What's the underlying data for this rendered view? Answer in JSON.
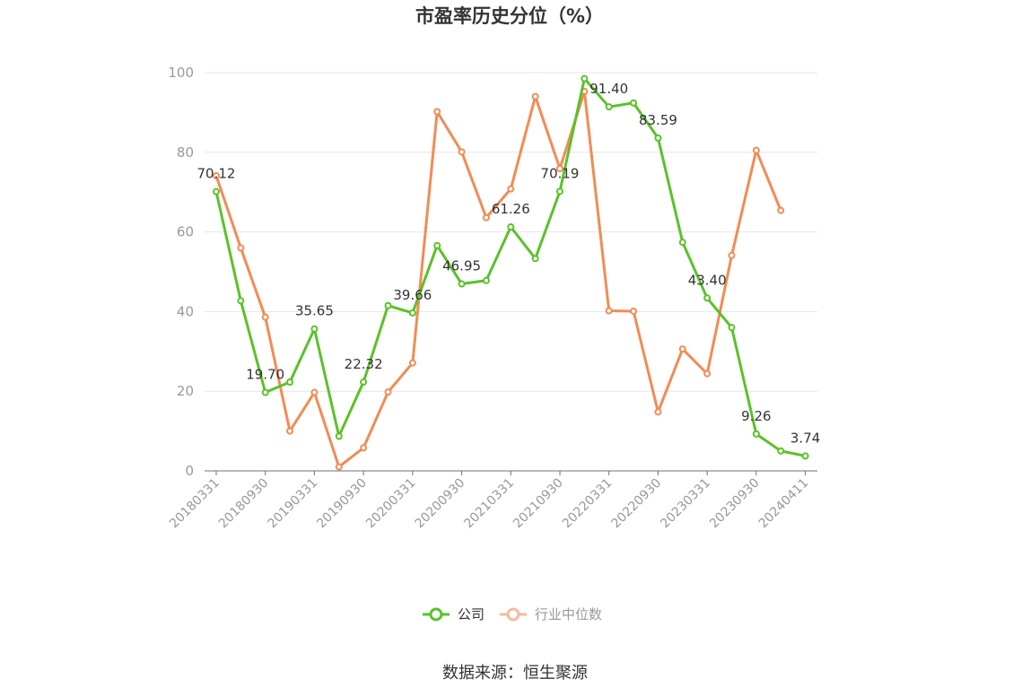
{
  "chart_data": {
    "type": "line",
    "title": "市盈率历史分位（%）",
    "xlabel": "",
    "ylabel": "",
    "ylim": [
      0,
      100
    ],
    "yticks": [
      0,
      20,
      40,
      60,
      80,
      100
    ],
    "x_tick_labels": [
      "20180331",
      "20180930",
      "20190331",
      "20190930",
      "20200331",
      "20200930",
      "20210331",
      "20210930",
      "20220331",
      "20220930",
      "20230331",
      "20230930",
      "20240411"
    ],
    "x_tick_positions": [
      0,
      2,
      4,
      6,
      8,
      10,
      12,
      14,
      16,
      18,
      20,
      22,
      24
    ],
    "grid": true,
    "legend_position": "bottom-center",
    "series": [
      {
        "name": "公司",
        "color": "#5ac229",
        "x": [
          0,
          1,
          2,
          3,
          4,
          5,
          6,
          7,
          8,
          9,
          10,
          11,
          12,
          13,
          14,
          15,
          16,
          17,
          18,
          19,
          20,
          21,
          22,
          23,
          24
        ],
        "values": [
          70.12,
          42.7,
          19.7,
          22.3,
          35.65,
          8.7,
          22.32,
          41.5,
          39.66,
          56.6,
          46.95,
          47.8,
          61.26,
          53.3,
          70.19,
          98.5,
          91.4,
          92.4,
          83.59,
          57.4,
          43.4,
          36.0,
          9.26,
          5.0,
          3.74
        ],
        "labels": {
          "0": "70.12",
          "2": "19.70",
          "4": "35.65",
          "6": "22.32",
          "8": "39.66",
          "10": "46.95",
          "12": "61.26",
          "14": "70.19",
          "16": "91.40",
          "18": "83.59",
          "20": "43.40",
          "22": "9.26",
          "24": "3.74"
        }
      },
      {
        "name": "行业中位数",
        "color": "#f28b55",
        "x": [
          0,
          1,
          2,
          3,
          4,
          5,
          6,
          7,
          8,
          9,
          10,
          11,
          12,
          13,
          14,
          15,
          16,
          17,
          18,
          19,
          20,
          21,
          22,
          23
        ],
        "values": [
          74.1,
          56.0,
          38.6,
          10.0,
          19.7,
          1.0,
          5.8,
          19.8,
          27.1,
          90.2,
          80.1,
          63.6,
          70.8,
          94.0,
          75.9,
          95.3,
          40.2,
          40.1,
          14.8,
          30.6,
          24.4,
          54.1,
          80.5,
          65.4
        ]
      }
    ]
  },
  "legend": {
    "items": [
      {
        "label": "公司",
        "color": "#5ac229",
        "text_color": "#333333"
      },
      {
        "label": "行业中位数",
        "color": "#f9b99b",
        "text_color": "#999999"
      }
    ]
  },
  "source": "数据来源：恒生聚源"
}
